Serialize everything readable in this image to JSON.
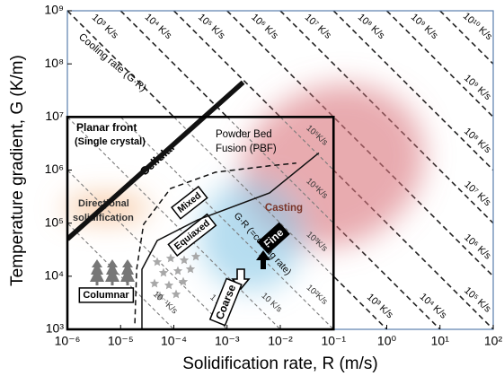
{
  "chart_data": {
    "type": "line",
    "xlabel": "Solidification rate, R (m/s)",
    "ylabel": "Temperature gradient, G (K/m)",
    "xscale": "log",
    "yscale": "log",
    "xlim": [
      1e-06,
      100
    ],
    "ylim": [
      1000,
      1000000000
    ],
    "xticks": [
      {
        "value": 1e-06,
        "label": "10⁻⁶"
      },
      {
        "value": 1e-05,
        "label": "10⁻⁵"
      },
      {
        "value": 0.0001,
        "label": "10⁻⁴"
      },
      {
        "value": 0.001,
        "label": "10⁻³"
      },
      {
        "value": 0.01,
        "label": "10⁻²"
      },
      {
        "value": 0.1,
        "label": "10⁻¹"
      },
      {
        "value": 1,
        "label": "10⁰"
      },
      {
        "value": 10,
        "label": "10¹"
      },
      {
        "value": 100,
        "label": "10²"
      }
    ],
    "yticks": [
      {
        "value": 1000,
        "label": "10³"
      },
      {
        "value": 10000,
        "label": "10⁴"
      },
      {
        "value": 100000,
        "label": "10⁵"
      },
      {
        "value": 1000000,
        "label": "10⁶"
      },
      {
        "value": 10000000,
        "label": "10⁷"
      },
      {
        "value": 100000000,
        "label": "10⁸"
      },
      {
        "value": 1000000000,
        "label": "10⁹"
      }
    ],
    "inset": {
      "xlim": [
        1e-06,
        0.1
      ],
      "ylim": [
        1000,
        10000000
      ]
    },
    "colors": {
      "frame": "#5b7fae",
      "inset_frame": "#000000",
      "outer_lines": "#222222",
      "inset_lines": "#7a7a7a",
      "boundaries": "#111111"
    },
    "outer_lines": [
      {
        "value": 1000,
        "top_label": "10³ K/s",
        "edge_label": "10³ K/s"
      },
      {
        "value": 10000,
        "top_label": "10⁴ K/s",
        "edge_label": "10⁴ K/s"
      },
      {
        "value": 100000,
        "top_label": "10⁵ K/s",
        "edge_label": "10⁵ K/s"
      },
      {
        "value": 1000000,
        "top_label": "10⁶ K/s",
        "edge_label": "10⁶ K/s"
      },
      {
        "value": 10000000,
        "top_label": "10⁷ K/s",
        "edge_label": "10⁷ K/s"
      },
      {
        "value": 100000000,
        "top_label": "10⁸ K/s",
        "edge_label": "10⁸ K/s"
      },
      {
        "value": 1000000000,
        "top_label": "10⁹ K/s",
        "edge_label": "10⁹ K/s"
      },
      {
        "value": 10000000000,
        "top_label": "10¹⁰ K/s"
      }
    ],
    "inset_lines": [
      {
        "value": 0.1,
        "label": "10⁻¹K/s"
      },
      {
        "value": 1,
        "label": "1 K/s"
      },
      {
        "value": 10,
        "label": "10 K/s"
      },
      {
        "value": 100,
        "label": "10²K/s"
      },
      {
        "value": 1000,
        "label": "10³K/s"
      },
      {
        "value": 10000,
        "label": "10⁴K/s"
      },
      {
        "value": 100000,
        "label": "10⁵K/s"
      }
    ],
    "boundaries": [
      {
        "x": [
          1e-06,
          0.002
        ],
        "y": [
          50000,
          45000000
        ],
        "style": "thick"
      },
      {
        "x": [
          2.52e-05,
          2.52e-05,
          4.88e-05,
          0.00028,
          0.0063,
          0.053
        ],
        "y": [
          1000,
          13500,
          47000,
          115000,
          370000,
          2100000
        ],
        "style": "solid"
      },
      {
        "x": [
          1.85e-05,
          2e-05,
          2.7e-05,
          8.7e-05,
          0.00061,
          0.0063,
          0.02
        ],
        "y": [
          1300,
          13500,
          95000,
          450000,
          910000,
          1200000,
          1350000
        ],
        "style": "dashed"
      }
    ],
    "annotations": [
      "Planar front",
      "(Single crystal)",
      "Cellular",
      "Powder Bed",
      "Fusion (PBF)",
      "Directional",
      "solidification",
      "Mixed",
      "Equiaxed",
      "Casting",
      "Fine",
      "Coarse",
      "G·R (=cooling rate)",
      "Columnar",
      "Cooling rate (G·R)"
    ]
  }
}
